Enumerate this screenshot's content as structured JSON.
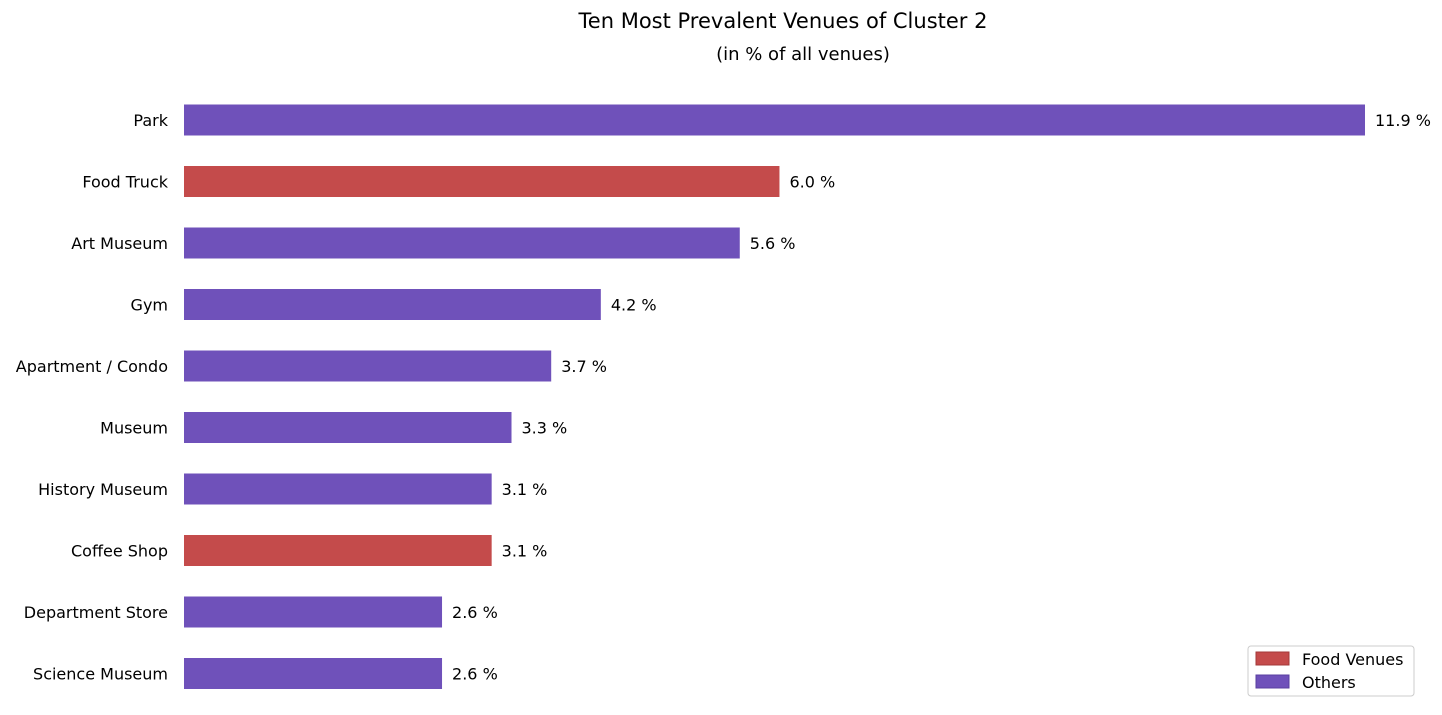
{
  "chart_data": {
    "type": "bar",
    "orientation": "horizontal",
    "title": "Ten Most Prevalent Venues of Cluster 2",
    "subtitle": "(in % of all venues)",
    "categories": [
      "Park",
      "Food Truck",
      "Art Museum",
      "Gym",
      "Apartment / Condo",
      "Museum",
      "History Museum",
      "Coffee Shop",
      "Department Store",
      "Science Museum"
    ],
    "values": [
      11.9,
      6.0,
      5.6,
      4.2,
      3.7,
      3.3,
      3.1,
      3.1,
      2.6,
      2.6
    ],
    "value_labels": [
      "11.9 %",
      "6.0 %",
      "5.6 %",
      "4.2 %",
      "3.7 %",
      "3.3 %",
      "3.1 %",
      "3.1 %",
      "2.6 %",
      "2.6 %"
    ],
    "groups": [
      "Others",
      "Food Venues",
      "Others",
      "Others",
      "Others",
      "Others",
      "Others",
      "Food Venues",
      "Others",
      "Others"
    ],
    "xlim": [
      0,
      11.9
    ],
    "xlabel": "",
    "ylabel": "",
    "grid": false,
    "axes_visible": false,
    "legend": {
      "position": "bottom-right",
      "entries": [
        {
          "label": "Food Venues",
          "color": "#c44b4b"
        },
        {
          "label": "Others",
          "color": "#6f51ba"
        }
      ]
    }
  }
}
